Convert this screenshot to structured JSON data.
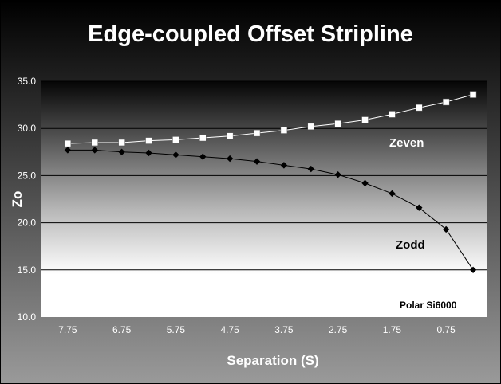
{
  "chart_data": {
    "type": "line",
    "title": "Edge-coupled Offset Stripline",
    "xlabel": "Separation (S)",
    "ylabel": "Zo",
    "xlim": [
      8.25,
      0.0
    ],
    "ylim": [
      10.0,
      35.0
    ],
    "x_reversed": true,
    "yticks": [
      "10.0",
      "15.0",
      "20.0",
      "25.0",
      "30.0",
      "35.0"
    ],
    "ytick_values": [
      10,
      15,
      20,
      25,
      30,
      35
    ],
    "xticks": [
      "7.75",
      "6.75",
      "5.75",
      "4.75",
      "3.75",
      "2.75",
      "1.75",
      "0.75"
    ],
    "xtick_values": [
      7.75,
      6.75,
      5.75,
      4.75,
      3.75,
      2.75,
      1.75,
      0.75
    ],
    "grid": true,
    "x": [
      7.75,
      7.25,
      6.75,
      6.25,
      5.75,
      5.25,
      4.75,
      4.25,
      3.75,
      3.25,
      2.75,
      2.25,
      1.75,
      1.25,
      0.75,
      0.25
    ],
    "series": [
      {
        "name": "Zeven",
        "marker": "square",
        "color": "#ffffff",
        "values": [
          28.4,
          28.5,
          28.5,
          28.7,
          28.8,
          29.0,
          29.2,
          29.5,
          29.8,
          30.2,
          30.5,
          30.9,
          31.5,
          32.2,
          32.8,
          33.6
        ]
      },
      {
        "name": "Zodd",
        "marker": "diamond",
        "color": "#000000",
        "values": [
          27.7,
          27.7,
          27.5,
          27.4,
          27.2,
          27.0,
          26.8,
          26.5,
          26.1,
          25.7,
          25.1,
          24.2,
          23.1,
          21.6,
          19.3,
          15.0
        ]
      }
    ],
    "annotations": [
      "Polar Si6000"
    ]
  }
}
